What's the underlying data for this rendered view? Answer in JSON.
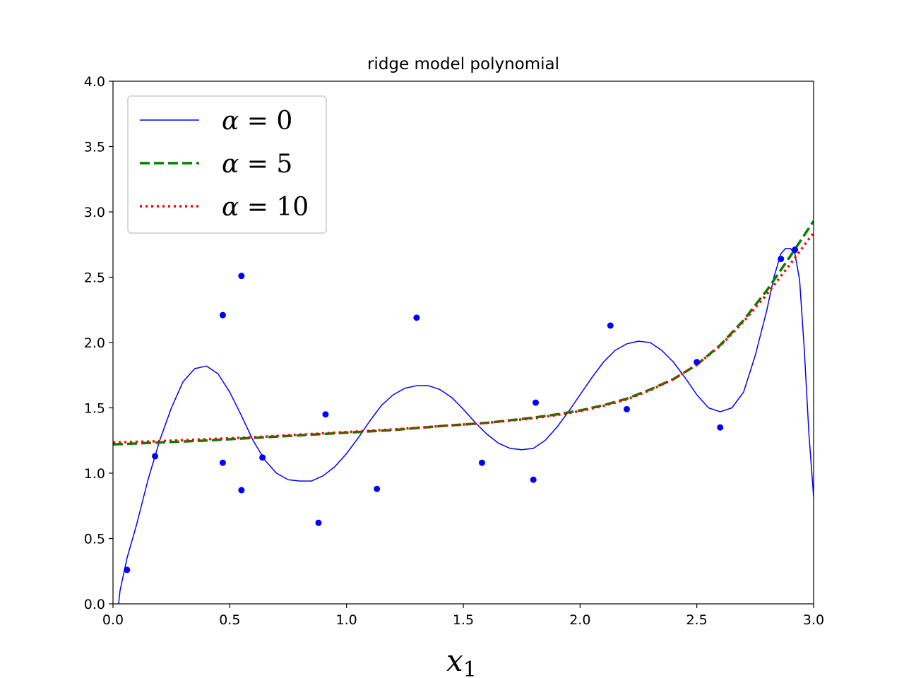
{
  "chart_data": {
    "type": "line",
    "title": "ridge model polynomial",
    "xlabel": "x",
    "xlabel_sub": "1",
    "ylabel": "",
    "xlim": [
      0.0,
      3.0
    ],
    "ylim": [
      0.0,
      4.0
    ],
    "xticks": [
      "0.0",
      "0.5",
      "1.0",
      "1.5",
      "2.0",
      "2.5",
      "3.0"
    ],
    "yticks": [
      "0.0",
      "0.5",
      "1.0",
      "1.5",
      "2.0",
      "2.5",
      "3.0",
      "3.5",
      "4.0"
    ],
    "grid": false,
    "legend_position": "top-left",
    "scatter": {
      "color": "#0000ff",
      "x": [
        0.06,
        0.18,
        0.47,
        0.47,
        0.55,
        0.55,
        0.64,
        0.88,
        0.91,
        1.13,
        1.3,
        1.58,
        1.8,
        1.81,
        2.13,
        2.2,
        2.5,
        2.6,
        2.86,
        2.92
      ],
      "y": [
        0.26,
        1.13,
        1.08,
        2.21,
        0.87,
        2.51,
        1.12,
        0.62,
        1.45,
        0.88,
        2.19,
        1.08,
        0.95,
        1.54,
        2.13,
        1.49,
        1.85,
        1.35,
        2.64,
        2.71
      ]
    },
    "series": [
      {
        "name": "α = 0",
        "label_greek": "α",
        "label_value": "0",
        "style": "solid",
        "color": "#0000ff",
        "x": [
          0.0,
          0.03,
          0.06,
          0.1,
          0.15,
          0.2,
          0.25,
          0.3,
          0.35,
          0.4,
          0.45,
          0.5,
          0.55,
          0.6,
          0.65,
          0.7,
          0.75,
          0.8,
          0.85,
          0.9,
          0.95,
          1.0,
          1.05,
          1.1,
          1.15,
          1.2,
          1.25,
          1.3,
          1.35,
          1.4,
          1.45,
          1.5,
          1.55,
          1.6,
          1.65,
          1.7,
          1.75,
          1.8,
          1.85,
          1.9,
          1.95,
          2.0,
          2.05,
          2.1,
          2.15,
          2.2,
          2.25,
          2.3,
          2.35,
          2.4,
          2.45,
          2.5,
          2.55,
          2.6,
          2.65,
          2.7,
          2.75,
          2.8,
          2.83,
          2.86,
          2.88,
          2.9,
          2.92,
          2.94,
          2.96,
          2.98,
          3.0
        ],
        "y": [
          -0.4,
          0.1,
          0.35,
          0.6,
          0.95,
          1.25,
          1.5,
          1.7,
          1.8,
          1.82,
          1.76,
          1.62,
          1.44,
          1.25,
          1.1,
          1.0,
          0.95,
          0.94,
          0.94,
          0.98,
          1.05,
          1.15,
          1.27,
          1.4,
          1.52,
          1.6,
          1.65,
          1.67,
          1.67,
          1.64,
          1.58,
          1.49,
          1.39,
          1.3,
          1.23,
          1.19,
          1.18,
          1.19,
          1.25,
          1.35,
          1.47,
          1.6,
          1.73,
          1.85,
          1.94,
          1.99,
          2.01,
          2.0,
          1.94,
          1.85,
          1.73,
          1.6,
          1.5,
          1.47,
          1.5,
          1.62,
          1.9,
          2.25,
          2.5,
          2.68,
          2.72,
          2.72,
          2.68,
          2.48,
          1.95,
          1.3,
          0.82
        ]
      },
      {
        "name": "α = 5",
        "label_greek": "α",
        "label_value": "5",
        "style": "dashed",
        "color": "#008000",
        "x": [
          0.0,
          0.2,
          0.4,
          0.6,
          0.8,
          1.0,
          1.2,
          1.4,
          1.6,
          1.8,
          1.9,
          2.0,
          2.1,
          2.2,
          2.3,
          2.4,
          2.5,
          2.6,
          2.7,
          2.8,
          2.9,
          3.0
        ],
        "y": [
          1.22,
          1.235,
          1.25,
          1.27,
          1.29,
          1.31,
          1.33,
          1.36,
          1.385,
          1.425,
          1.45,
          1.48,
          1.52,
          1.57,
          1.64,
          1.72,
          1.83,
          1.98,
          2.17,
          2.4,
          2.66,
          2.93
        ]
      },
      {
        "name": "α = 10",
        "label_greek": "α",
        "label_value": "10",
        "style": "dotted",
        "color": "#ff0000",
        "x": [
          0.0,
          0.2,
          0.4,
          0.6,
          0.8,
          1.0,
          1.2,
          1.4,
          1.6,
          1.8,
          1.9,
          2.0,
          2.1,
          2.2,
          2.3,
          2.4,
          2.5,
          2.6,
          2.7,
          2.8,
          2.9,
          3.0
        ],
        "y": [
          1.235,
          1.245,
          1.26,
          1.275,
          1.295,
          1.315,
          1.335,
          1.36,
          1.385,
          1.42,
          1.445,
          1.475,
          1.515,
          1.565,
          1.635,
          1.72,
          1.83,
          1.975,
          2.16,
          2.37,
          2.6,
          2.84
        ]
      }
    ]
  }
}
